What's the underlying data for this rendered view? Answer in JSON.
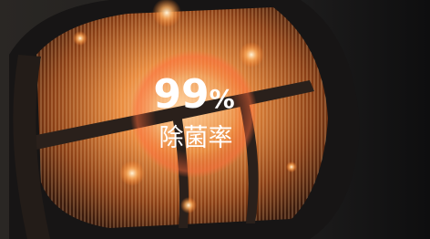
{
  "stat": {
    "number": "99",
    "unit": "%",
    "caption": "除菌率"
  }
}
